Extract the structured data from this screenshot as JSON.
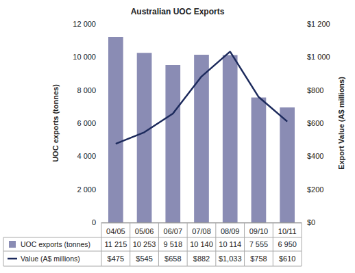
{
  "chart_data": {
    "type": "bar",
    "title": "Australian UOC Exports",
    "categories": [
      "04/05",
      "05/06",
      "06/07",
      "07/08",
      "08/09",
      "09/10",
      "10/11"
    ],
    "series": [
      {
        "name": "UOC exports (tonnes)",
        "type": "bar",
        "color": "#8a8cb4",
        "values": [
          11215,
          10253,
          9518,
          10140,
          10114,
          7555,
          6950
        ],
        "value_labels": [
          "11 215",
          "10 253",
          "9 518",
          "10 140",
          "10 114",
          "7 555",
          "6 950"
        ]
      },
      {
        "name": "Value (A$ millions)",
        "type": "line",
        "color": "#1c2a5c",
        "axis": "y2",
        "values": [
          475,
          545,
          658,
          882,
          1033,
          758,
          610
        ],
        "value_labels": [
          "$475",
          "$545",
          "$658",
          "$882",
          "$1,033",
          "$758",
          "$610"
        ]
      }
    ],
    "y_label": "UOC exports (tonnes)",
    "y2_label": "Export Value (A$ millions)",
    "ylim": [
      0,
      12000
    ],
    "yticks": [
      0,
      {
        "value": 2000,
        "label": "2 000"
      },
      {
        "value": 4000,
        "label": "4 000"
      },
      {
        "value": 6000,
        "label": "6 000"
      },
      {
        "value": 8000,
        "label": "8 000"
      },
      {
        "value": 10000,
        "label": "10 000"
      },
      {
        "value": 12000,
        "label": "12 000"
      }
    ],
    "y2lim": [
      0,
      1200
    ],
    "y2ticks": [
      {
        "value": 0,
        "label": "$0"
      },
      {
        "value": 200,
        "label": "$200"
      },
      {
        "value": 400,
        "label": "$400"
      },
      {
        "value": 600,
        "label": "$600"
      },
      {
        "value": 800,
        "label": "$800"
      },
      {
        "value": 1000,
        "label": "$1 000"
      },
      {
        "value": 1200,
        "label": "$1 200"
      }
    ],
    "grid": false
  }
}
